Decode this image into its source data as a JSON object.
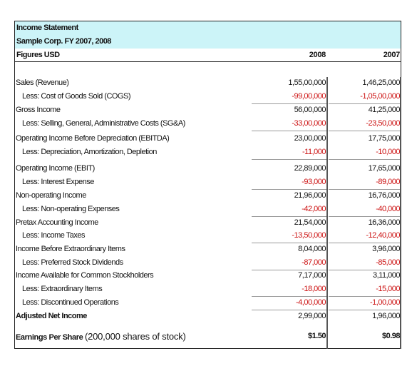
{
  "header": {
    "title": "Income Statement",
    "company": "Sample Corp.  FY 2007, 2008",
    "figures_label": "Figures USD",
    "year_1": "2008",
    "year_2": "2007"
  },
  "rows": [
    {
      "label": "Sales (Revenue)",
      "v2008": "1,55,00,000",
      "v2007": "1,46,25,000"
    },
    {
      "label": "Less: Cost of Goods Sold (COGS)",
      "v2008": "-99,00,000",
      "v2007": "-1,05,00,000"
    },
    {
      "label": "Gross Income",
      "v2008": "56,00,000",
      "v2007": "41,25,000"
    },
    {
      "label": "Less: Selling, General, Administrative Costs (SG&A)",
      "v2008": "-33,00,000",
      "v2007": "-23,50,000"
    },
    {
      "label": "Operating Income Before Depreciation (EBITDA)",
      "v2008": "23,00,000",
      "v2007": "17,75,000"
    },
    {
      "label": "Less: Depreciation, Amortization, Depletion",
      "v2008": "-11,000",
      "v2007": "-10,000"
    },
    {
      "label": "Operating Income (EBIT)",
      "v2008": "22,89,000",
      "v2007": "17,65,000"
    },
    {
      "label": "Less: Interest Expense",
      "v2008": "-93,000",
      "v2007": "-89,000"
    },
    {
      "label": "Non-operating Income",
      "v2008": "21,96,000",
      "v2007": "16,76,000"
    },
    {
      "label": "Less: Non-operating Expenses",
      "v2008": "-42,000",
      "v2007": "-40,000"
    },
    {
      "label": "Pretax Accounting Income",
      "v2008": "21,54,000",
      "v2007": "16,36,000"
    },
    {
      "label": "Less: Income Taxes",
      "v2008": "-13,50,000",
      "v2007": "-12,40,000"
    },
    {
      "label": "Income Before Extraordinary Items",
      "v2008": "8,04,000",
      "v2007": "3,96,000"
    },
    {
      "label": "Less: Preferred Stock Dividends",
      "v2008": "-87,000",
      "v2007": "-85,000"
    },
    {
      "label": "Income Available for Common Stockholders",
      "v2008": "7,17,000",
      "v2007": "3,11,000"
    },
    {
      "label": "Less: Extraordinary Items",
      "v2008": "-18,000",
      "v2007": "-15,000"
    },
    {
      "label": "Less: Discontinued Operations",
      "v2008": "-4,00,000",
      "v2007": "-1,00,000"
    },
    {
      "label": "Adjusted Net Income",
      "v2008": "2,99,000",
      "v2007": "1,96,000"
    }
  ],
  "eps": {
    "label": "Earnings Per Share",
    "note": "(200,000 shares of stock)",
    "v2008": "$1.50",
    "v2007": "$0.98"
  },
  "colors": {
    "header_bg": "#ccf4f8",
    "negative": "#cc1111"
  }
}
